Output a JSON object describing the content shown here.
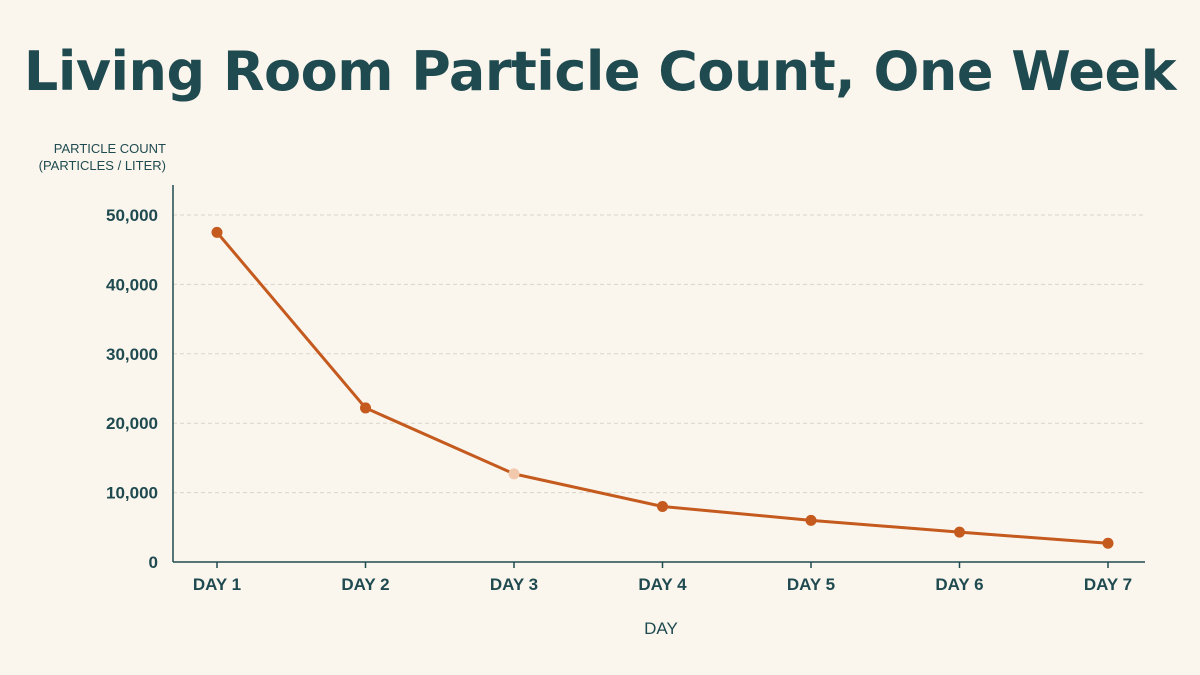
{
  "chart_data": {
    "type": "line",
    "title": "Living Room Particle Count, One Week",
    "ylabel_lines": [
      "PARTICLE COUNT",
      "(PARTICLES / LITER)"
    ],
    "xlabel": "DAY",
    "categories": [
      "DAY 1",
      "DAY 2",
      "DAY 3",
      "DAY 4",
      "DAY 5",
      "DAY 6",
      "DAY 7"
    ],
    "series": [
      {
        "values": [
          47500,
          22200,
          12700,
          8000,
          6000,
          4300,
          2700
        ]
      }
    ],
    "ylim": [
      0,
      50000
    ],
    "yticks": [
      0,
      10000,
      20000,
      30000,
      40000,
      50000
    ],
    "ytick_labels": [
      "0",
      "10,000",
      "20,000",
      "30,000",
      "40,000",
      "50,000"
    ],
    "highlighted_index": 2,
    "grid": "horizontal dashed",
    "colors": {
      "line": "#c45a1e",
      "marker": "#c45a1e",
      "highlight_marker": "#f2c9ad",
      "axis": "#1f4a4f",
      "grid": "#d9d4ca",
      "text": "#1f4a4f"
    }
  }
}
